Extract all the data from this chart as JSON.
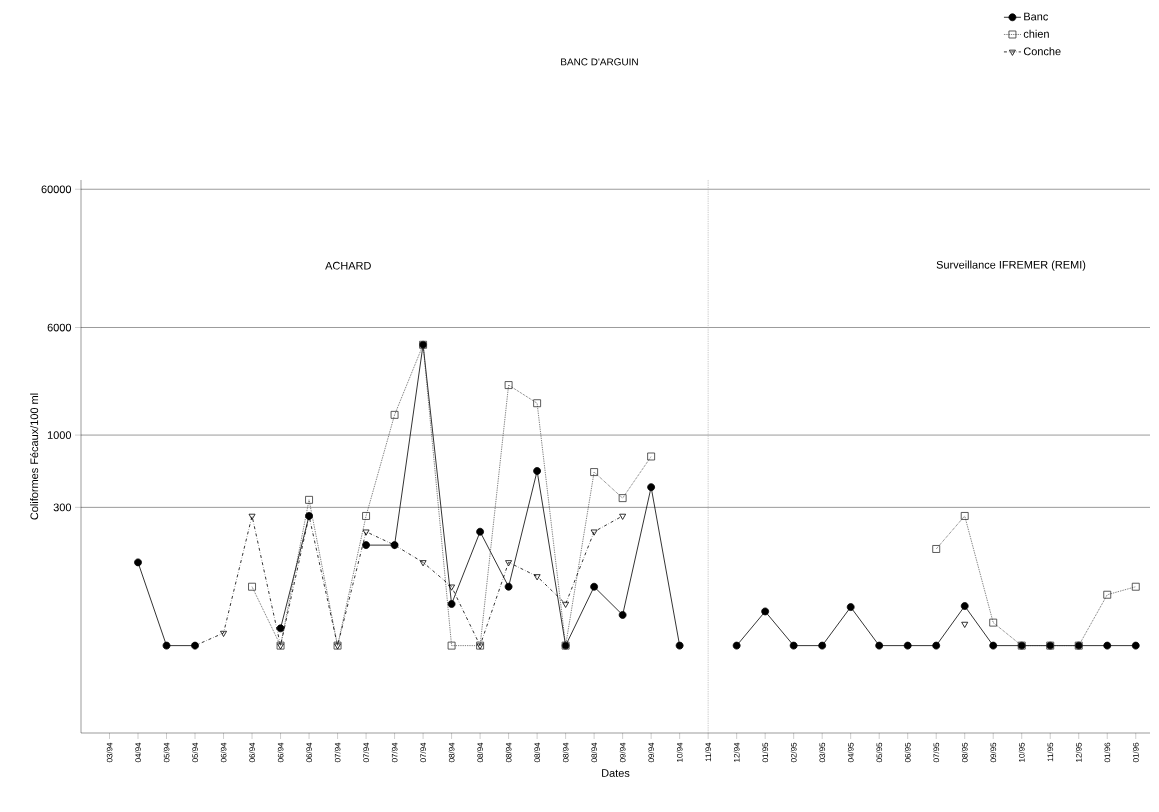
{
  "chart_data": {
    "type": "line",
    "title": "BANC D'ARGUIN",
    "xlabel": "Dates",
    "ylabel": "Coliformes Fécaux/100 ml",
    "categories": [
      "03/94",
      "04/94",
      "05/94",
      "05/94",
      "06/94",
      "06/94",
      "06/94",
      "06/94",
      "07/94",
      "07/94",
      "07/94",
      "07/94",
      "08/94",
      "08/94",
      "08/94",
      "08/94",
      "08/94",
      "08/94",
      "09/94",
      "09/94",
      "10/94",
      "11/94",
      "12/94",
      "01/95",
      "02/95",
      "03/95",
      "04/95",
      "05/95",
      "06/95",
      "07/95",
      "08/95",
      "09/95",
      "10/95",
      "11/95",
      "12/95",
      "01/96",
      "01/96"
    ],
    "series": [
      {
        "name": "Banc",
        "color": "#000000",
        "marker": "circle",
        "line_style": "solid",
        "values": [
          null,
          120,
          30,
          30,
          null,
          null,
          40,
          260,
          null,
          160,
          160,
          4500,
          60,
          200,
          80,
          550,
          30,
          80,
          50,
          420,
          30,
          null,
          30,
          53,
          30,
          30,
          57,
          30,
          30,
          30,
          58,
          30,
          30,
          30,
          30,
          30,
          30
        ]
      },
      {
        "name": "chien",
        "color": "#333333",
        "marker": "square",
        "line_style": "dotted",
        "values": [
          null,
          null,
          null,
          null,
          null,
          80,
          30,
          340,
          30,
          260,
          1400,
          4500,
          30,
          30,
          2300,
          1700,
          30,
          540,
          350,
          700,
          null,
          null,
          null,
          null,
          null,
          null,
          null,
          null,
          null,
          150,
          260,
          44,
          30,
          30,
          30,
          70,
          80
        ]
      },
      {
        "name": "Conche",
        "color": "#000000",
        "marker": "triangle",
        "line_style": "dashed",
        "values": [
          null,
          null,
          null,
          30,
          37,
          260,
          30,
          260,
          30,
          200,
          160,
          120,
          80,
          30,
          120,
          95,
          60,
          200,
          260,
          null,
          null,
          null,
          null,
          null,
          null,
          null,
          null,
          null,
          null,
          null,
          43,
          null,
          null,
          null,
          null,
          null,
          null
        ]
      }
    ],
    "log": "y",
    "ylim": [
      7,
      70000
    ],
    "yticks": [
      300,
      1000,
      6000,
      60000
    ],
    "grid": "y",
    "legend": "top right",
    "ref_lines": [
      {
        "axis": "x",
        "value": "11/94",
        "color": "#aaaaaa",
        "line_style": "dotted"
      }
    ],
    "annotations": [
      "ACHARD",
      "Surveillance IFREMER (REMI)"
    ]
  }
}
